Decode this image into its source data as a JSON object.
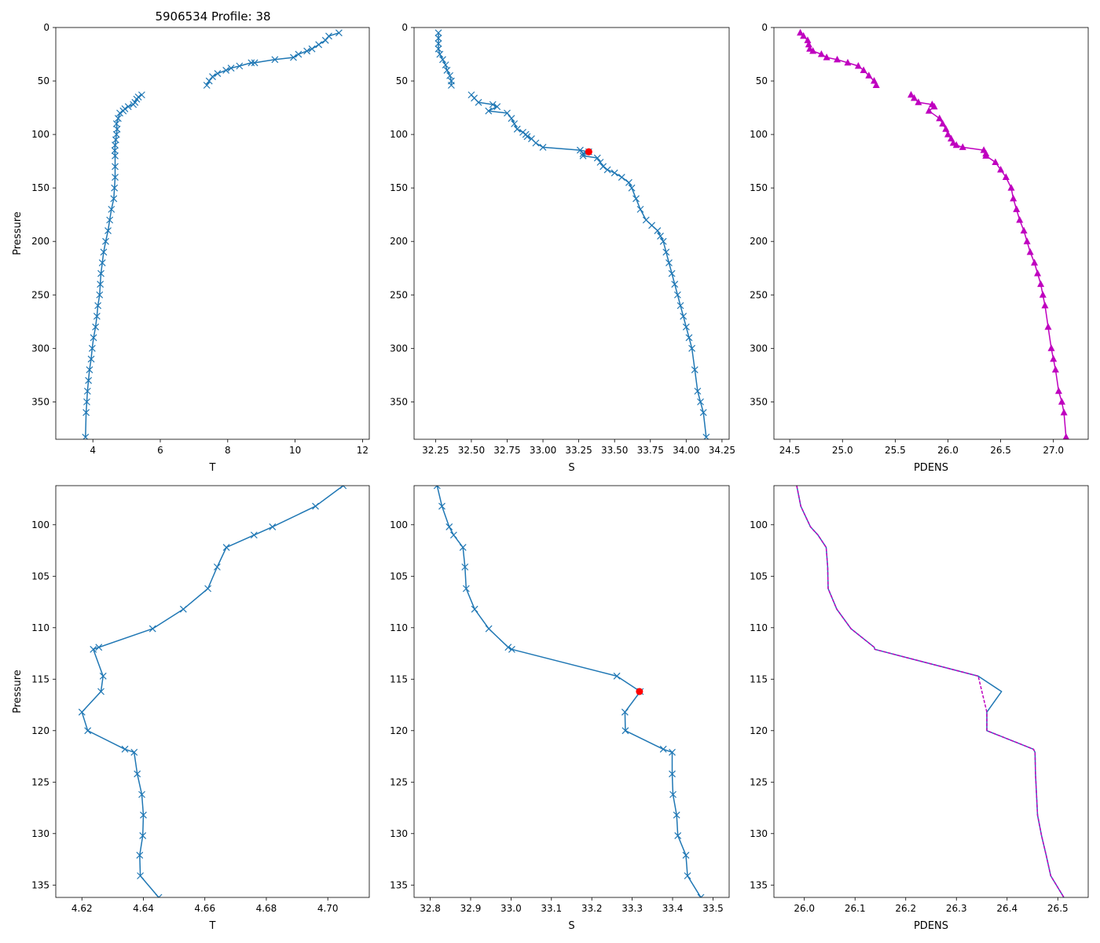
{
  "figure_title": "5906534 Profile: 38",
  "colors": {
    "line": "#1f77b4",
    "density": "#bf00bf",
    "flag": "#ff0000",
    "axes": "#000000"
  },
  "chart_data": [
    {
      "id": "temp-full",
      "type": "line",
      "xlabel": "T",
      "ylabel": "Pressure",
      "ylabel_visible": true,
      "xlim": [
        2.9,
        12.2
      ],
      "ylim": [
        385,
        0
      ],
      "invert_y": true,
      "xticks": [
        4,
        6,
        8,
        10,
        12
      ],
      "yticks": [
        0,
        50,
        100,
        150,
        200,
        250,
        300,
        350
      ],
      "marker": "x",
      "line_color_key": "line",
      "series": [
        {
          "name": "T (upper)",
          "x": [
            11.3,
            11.0,
            10.9,
            10.7,
            10.5,
            10.35,
            10.1,
            9.95,
            9.4,
            8.8,
            8.7,
            8.35,
            8.1,
            7.95,
            7.7,
            7.55,
            7.45,
            7.38
          ],
          "y": [
            5,
            8,
            12,
            16,
            20,
            22,
            25,
            28,
            30,
            33,
            33,
            36,
            38,
            40,
            43,
            46,
            50,
            54
          ]
        },
        {
          "name": "T (lower)",
          "x": [
            5.45,
            5.35,
            5.3,
            5.25,
            5.2,
            5.05,
            4.95,
            4.9,
            4.8,
            4.75,
            4.7,
            4.72,
            4.7,
            4.68,
            4.66,
            4.65,
            4.66,
            4.66,
            4.66,
            4.64,
            4.62,
            4.55,
            4.5,
            4.45,
            4.38,
            4.32,
            4.28,
            4.24,
            4.22,
            4.2,
            4.15,
            4.12,
            4.08,
            4.02,
            3.98,
            3.95,
            3.9,
            3.87,
            3.84,
            3.82,
            3.8,
            3.78
          ],
          "y": [
            63,
            65,
            67,
            70,
            72,
            74,
            76,
            78,
            80,
            85,
            90,
            95,
            100,
            105,
            110,
            115,
            120,
            130,
            140,
            150,
            160,
            170,
            180,
            190,
            200,
            210,
            220,
            230,
            240,
            250,
            260,
            270,
            280,
            290,
            300,
            310,
            320,
            330,
            340,
            350,
            360,
            383
          ]
        }
      ]
    },
    {
      "id": "sal-full",
      "type": "line",
      "xlabel": "S",
      "ylabel": "",
      "ylabel_visible": false,
      "xlim": [
        32.1,
        34.3
      ],
      "ylim": [
        385,
        0
      ],
      "invert_y": true,
      "xticks": [
        32.25,
        32.5,
        32.75,
        33.0,
        33.25,
        33.5,
        33.75,
        34.0,
        34.25
      ],
      "xtick_labels": [
        "32.25",
        "32.50",
        "32.75",
        "33.00",
        "33.25",
        "33.50",
        "33.75",
        "34.00",
        "34.25"
      ],
      "yticks": [
        0,
        50,
        100,
        150,
        200,
        250,
        300,
        350
      ],
      "marker": "x",
      "line_color_key": "line",
      "series": [
        {
          "name": "S (upper)",
          "x": [
            32.27,
            32.27,
            32.27,
            32.27,
            32.28,
            32.3,
            32.32,
            32.33,
            32.35,
            32.36,
            32.36
          ],
          "y": [
            5,
            10,
            15,
            20,
            25,
            30,
            35,
            40,
            45,
            50,
            54
          ]
        },
        {
          "name": "S (lower)",
          "x": [
            32.5,
            32.52,
            32.55,
            32.65,
            32.68,
            32.62,
            32.75,
            32.78,
            32.8,
            32.82,
            32.86,
            32.88,
            32.89,
            32.92,
            32.95,
            33.0,
            33.26,
            33.32,
            33.28,
            33.28,
            33.38,
            33.4,
            33.42,
            33.45,
            33.5,
            33.55,
            33.6,
            33.62,
            33.65,
            33.68,
            33.72,
            33.76,
            33.8,
            33.82,
            33.84,
            33.86,
            33.88,
            33.9,
            33.92,
            33.94,
            33.96,
            33.98,
            34.0,
            34.02,
            34.04,
            34.06,
            34.08,
            34.1,
            34.12,
            34.14
          ],
          "y": [
            63,
            66,
            70,
            72,
            74,
            78,
            80,
            85,
            90,
            95,
            98,
            100,
            102,
            104,
            108,
            112,
            114.7,
            116.2,
            118,
            120,
            122,
            126,
            130,
            133,
            136,
            140,
            145,
            150,
            160,
            170,
            180,
            185,
            190,
            195,
            200,
            210,
            220,
            230,
            240,
            250,
            260,
            270,
            280,
            290,
            300,
            320,
            340,
            350,
            360,
            383
          ]
        }
      ],
      "highlight": {
        "x": 33.32,
        "y": 116.2,
        "color_key": "flag"
      }
    },
    {
      "id": "dens-full",
      "type": "line",
      "xlabel": "PDENS",
      "ylabel": "",
      "ylabel_visible": false,
      "xlim": [
        24.35,
        27.33
      ],
      "ylim": [
        385,
        0
      ],
      "invert_y": true,
      "xticks": [
        24.5,
        25.0,
        25.5,
        26.0,
        26.5,
        27.0
      ],
      "xtick_labels": [
        "24.5",
        "25.0",
        "25.5",
        "26.0",
        "26.5",
        "27.0"
      ],
      "yticks": [
        0,
        50,
        100,
        150,
        200,
        250,
        300,
        350
      ],
      "marker": "triangle",
      "line_color_key": "density",
      "series": [
        {
          "name": "PDENS (upper)",
          "x": [
            24.6,
            24.63,
            24.67,
            24.68,
            24.69,
            24.72,
            24.8,
            24.85,
            24.95,
            25.05,
            25.15,
            25.2,
            25.25,
            25.3,
            25.32
          ],
          "y": [
            5,
            8,
            12,
            16,
            20,
            22,
            25,
            28,
            30,
            33,
            36,
            40,
            45,
            50,
            54
          ]
        },
        {
          "name": "PDENS (lower)",
          "x": [
            25.65,
            25.68,
            25.72,
            25.85,
            25.87,
            25.82,
            25.92,
            25.95,
            25.98,
            26.0,
            26.03,
            26.05,
            26.08,
            26.14,
            26.34,
            26.36,
            26.36,
            26.45,
            26.5,
            26.55,
            26.6,
            26.62,
            26.65,
            26.68,
            26.72,
            26.75,
            26.78,
            26.82,
            26.85,
            26.88,
            26.9,
            26.92,
            26.95,
            26.98,
            27.0,
            27.02,
            27.05,
            27.08,
            27.1,
            27.12
          ],
          "y": [
            63,
            66,
            70,
            72,
            74,
            78,
            85,
            90,
            95,
            100,
            104,
            108,
            110,
            112,
            114.7,
            118,
            120,
            126,
            133,
            140,
            150,
            160,
            170,
            180,
            190,
            200,
            210,
            220,
            230,
            240,
            250,
            260,
            280,
            300,
            310,
            320,
            340,
            350,
            360,
            383
          ]
        }
      ]
    },
    {
      "id": "temp-zoom",
      "type": "line",
      "xlabel": "T",
      "ylabel": "Pressure",
      "ylabel_visible": true,
      "xlim": [
        4.6115,
        4.7135
      ],
      "ylim": [
        136.2,
        96.2
      ],
      "invert_y": true,
      "xticks": [
        4.62,
        4.64,
        4.66,
        4.68,
        4.7
      ],
      "xtick_labels": [
        "4.62",
        "4.64",
        "4.66",
        "4.68",
        "4.70"
      ],
      "yticks": [
        100,
        105,
        110,
        115,
        120,
        125,
        130,
        135
      ],
      "marker": "x",
      "line_color_key": "line",
      "series": [
        {
          "name": "T",
          "x": [
            4.705,
            4.696,
            4.682,
            4.676,
            4.667,
            4.664,
            4.661,
            4.653,
            4.643,
            4.6255,
            4.6237,
            4.6269,
            4.6262,
            4.62,
            4.6219,
            4.634,
            4.637,
            4.638,
            4.6395,
            4.64,
            4.6398,
            4.6388,
            4.639,
            4.645
          ],
          "y": [
            96.2,
            98.2,
            100.2,
            101.0,
            102.2,
            104.1,
            106.2,
            108.2,
            110.1,
            111.9,
            112.1,
            114.7,
            116.2,
            118.2,
            120.0,
            121.8,
            122.1,
            124.2,
            126.2,
            128.2,
            130.2,
            132.1,
            134.1,
            136.2
          ]
        }
      ]
    },
    {
      "id": "sal-zoom",
      "type": "line",
      "xlabel": "S",
      "ylabel": "",
      "ylabel_visible": false,
      "xlim": [
        32.76,
        33.54
      ],
      "ylim": [
        136.2,
        96.2
      ],
      "invert_y": true,
      "xticks": [
        32.8,
        32.9,
        33.0,
        33.1,
        33.2,
        33.3,
        33.4,
        33.5
      ],
      "xtick_labels": [
        "32.8",
        "32.9",
        "33.0",
        "33.1",
        "33.2",
        "33.3",
        "33.4",
        "33.5"
      ],
      "yticks": [
        100,
        105,
        110,
        115,
        120,
        125,
        130,
        135
      ],
      "marker": "x",
      "line_color_key": "line",
      "series": [
        {
          "name": "S",
          "x": [
            32.817,
            32.829,
            32.847,
            32.858,
            32.881,
            32.886,
            32.889,
            32.91,
            32.945,
            32.993,
            33.002,
            33.262,
            33.32,
            33.282,
            33.283,
            33.377,
            33.399,
            33.399,
            33.401,
            33.41,
            33.413,
            33.433,
            33.437,
            33.47
          ],
          "y": [
            96.2,
            98.2,
            100.2,
            101.0,
            102.2,
            104.1,
            106.2,
            108.2,
            110.1,
            111.9,
            112.1,
            114.7,
            116.2,
            118.2,
            120.0,
            121.8,
            122.1,
            124.2,
            126.2,
            128.2,
            130.2,
            132.1,
            134.1,
            136.2
          ]
        }
      ],
      "highlight": {
        "x": 33.318,
        "y": 116.2,
        "color_key": "flag"
      }
    },
    {
      "id": "dens-zoom",
      "type": "line",
      "xlabel": "PDENS",
      "ylabel": "",
      "ylabel_visible": false,
      "xlim": [
        25.94,
        26.56
      ],
      "ylim": [
        136.2,
        96.2
      ],
      "invert_y": true,
      "xticks": [
        26.0,
        26.1,
        26.2,
        26.3,
        26.4,
        26.5
      ],
      "xtick_labels": [
        "26.0",
        "26.1",
        "26.2",
        "26.3",
        "26.4",
        "26.5"
      ],
      "yticks": [
        100,
        105,
        110,
        115,
        120,
        125,
        130,
        135
      ],
      "marker": "none",
      "line_color_key": "line",
      "series": [
        {
          "name": "PDENS",
          "x": [
            25.985,
            25.993,
            26.012,
            26.027,
            26.043,
            26.046,
            26.047,
            26.064,
            26.092,
            26.138,
            26.139,
            26.343,
            26.389,
            26.36,
            26.36,
            26.452,
            26.455,
            26.456,
            26.458,
            26.46,
            26.468,
            26.477,
            26.486,
            26.512
          ],
          "y": [
            96.2,
            98.2,
            100.2,
            101.0,
            102.2,
            104.1,
            106.2,
            108.2,
            110.1,
            111.9,
            112.1,
            114.7,
            116.2,
            118.2,
            120.0,
            121.8,
            122.1,
            124.2,
            126.2,
            128.2,
            130.2,
            132.1,
            134.1,
            136.2
          ]
        },
        {
          "name": "PDENS (dashed overlay)",
          "style": "dashed",
          "color_key": "density",
          "x": [
            25.985,
            25.993,
            26.012,
            26.027,
            26.043,
            26.046,
            26.047,
            26.064,
            26.092,
            26.138,
            26.139,
            26.343,
            26.36,
            26.36,
            26.452,
            26.455,
            26.456,
            26.458,
            26.46,
            26.468,
            26.477,
            26.486,
            26.512
          ],
          "y": [
            96.2,
            98.2,
            100.2,
            101.0,
            102.2,
            104.1,
            106.2,
            108.2,
            110.1,
            111.9,
            112.1,
            114.7,
            118.2,
            120.0,
            121.8,
            122.1,
            124.2,
            126.2,
            128.2,
            130.2,
            132.1,
            134.1,
            136.2
          ]
        }
      ]
    }
  ]
}
